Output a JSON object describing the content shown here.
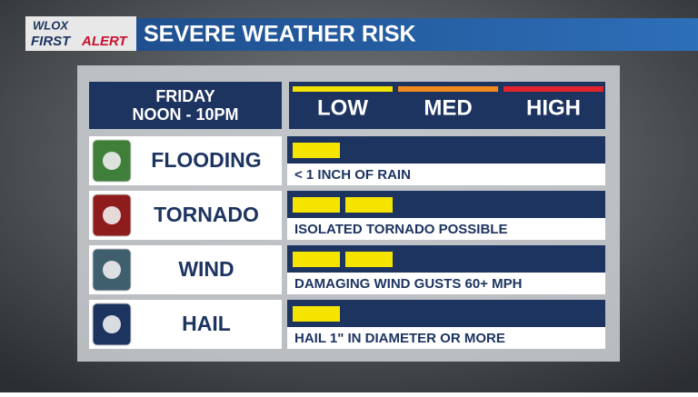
{
  "header": {
    "logo": [
      "WLOX",
      "FIRST",
      "ALERT"
    ],
    "title": "SEVERE WEATHER RISK"
  },
  "panel": {
    "period": [
      "FRIDAY",
      "NOON - 10PM"
    ],
    "scale": [
      {
        "label": "LOW",
        "color": "#f2e200"
      },
      {
        "label": "MED",
        "color": "#f08a1e"
      },
      {
        "label": "HIGH",
        "color": "#e3222b"
      }
    ],
    "bar_color": "#f5e400",
    "rows": [
      {
        "hazard": "FLOODING",
        "level": 1,
        "detail": "< 1 INCH OF RAIN",
        "icon_color": "#3f7f3a"
      },
      {
        "hazard": "TORNADO",
        "level": 2,
        "detail": "ISOLATED TORNADO POSSIBLE",
        "icon_color": "#8e1c1c"
      },
      {
        "hazard": "WIND",
        "level": 2,
        "detail": "DAMAGING WIND GUSTS 60+ MPH",
        "icon_color": "#3f5e6e"
      },
      {
        "hazard": "HAIL",
        "level": 1,
        "detail": "HAIL 1\" IN DIAMETER OR MORE",
        "icon_color": "#1d3461"
      }
    ]
  }
}
